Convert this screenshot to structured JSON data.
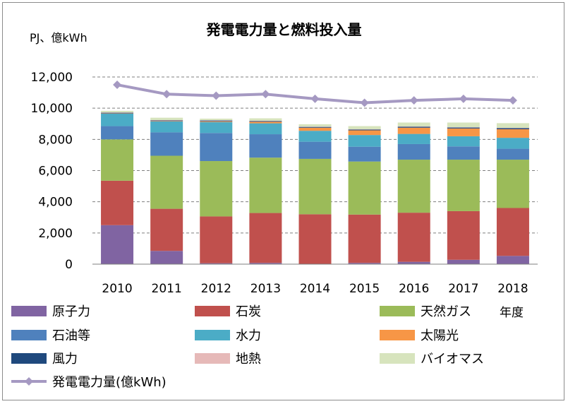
{
  "chart_data": {
    "type": "bar",
    "stacked": true,
    "title": "発電電力量と燃料投入量",
    "ylabel": "PJ、億kWh",
    "xlabel": "年度",
    "ylim": [
      0,
      12000
    ],
    "yticks": [
      0,
      2000,
      4000,
      6000,
      8000,
      10000,
      12000
    ],
    "ytick_labels": [
      "0",
      "2,000",
      "4,000",
      "6,000",
      "8,000",
      "10,000",
      "12,000"
    ],
    "grid": "horizontal dashed",
    "legend_position": "bottom",
    "categories": [
      "2010",
      "2011",
      "2012",
      "2013",
      "2014",
      "2015",
      "2016",
      "2017",
      "2018"
    ],
    "series": [
      {
        "name": "原子力",
        "color": "#8064a2",
        "values": [
          2500,
          850,
          60,
          80,
          0,
          80,
          150,
          280,
          530
        ]
      },
      {
        "name": "石炭",
        "color": "#c0504d",
        "values": [
          2850,
          2700,
          3000,
          3200,
          3200,
          3100,
          3150,
          3120,
          3070
        ]
      },
      {
        "name": "天然ガス",
        "color": "#9bbb59",
        "values": [
          2650,
          3400,
          3550,
          3550,
          3550,
          3400,
          3400,
          3300,
          3100
        ]
      },
      {
        "name": "石油等",
        "color": "#4f81bd",
        "values": [
          850,
          1500,
          1800,
          1500,
          1100,
          950,
          1000,
          850,
          700
        ]
      },
      {
        "name": "水力",
        "color": "#4bacc6",
        "values": [
          800,
          700,
          700,
          700,
          700,
          750,
          650,
          650,
          700
        ]
      },
      {
        "name": "太陽光",
        "color": "#f79646",
        "values": [
          20,
          30,
          50,
          100,
          200,
          300,
          400,
          500,
          550
        ]
      },
      {
        "name": "風力",
        "color": "#1f497d",
        "values": [
          40,
          40,
          50,
          50,
          50,
          50,
          60,
          60,
          70
        ]
      },
      {
        "name": "地熱",
        "color": "#e6b9b8",
        "values": [
          20,
          20,
          20,
          20,
          20,
          20,
          20,
          20,
          20
        ]
      },
      {
        "name": "バイオマス",
        "color": "#d7e4bd",
        "values": [
          100,
          150,
          100,
          150,
          150,
          200,
          250,
          300,
          300
        ]
      }
    ],
    "line_series": {
      "name": "発電電力量(億kWh)",
      "color": "#a599c2",
      "values": [
        11500,
        10900,
        10800,
        10900,
        10600,
        10350,
        10500,
        10600,
        10500
      ]
    }
  }
}
